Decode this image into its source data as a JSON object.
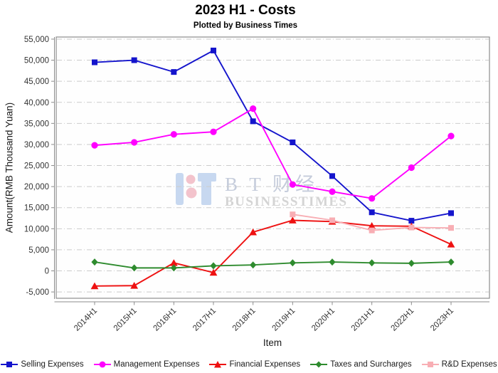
{
  "title": "2023 H1 - Costs",
  "subtitle": "Plotted by Business Times",
  "watermark": {
    "line1": "B T 财经",
    "line2": "BUSINESSTIMES",
    "logo_blue": "#C7D8F0",
    "logo_pink": "#F3C3CC",
    "text_color1": "#C5CCDB",
    "text_color2": "#D4D4D4"
  },
  "chart_data": {
    "type": "line",
    "title": "2023 H1 - Costs",
    "subtitle": "Plotted by Business Times",
    "xlabel": "Item",
    "ylabel": "Amount(RMB Thousand Yuan)",
    "categories": [
      "2014H1",
      "2015H1",
      "2016H1",
      "2017H1",
      "2018H1",
      "2019H1",
      "2020H1",
      "2021H1",
      "2022H1",
      "2023H1"
    ],
    "series": [
      {
        "name": "Selling Expenses",
        "color": "#1414CC",
        "marker": "square",
        "values": [
          49500,
          50000,
          47200,
          52300,
          35500,
          30500,
          22500,
          13900,
          11900,
          13700
        ]
      },
      {
        "name": "Management Expenses",
        "color": "#FF00FF",
        "marker": "circle",
        "values": [
          29800,
          30500,
          32400,
          33000,
          38500,
          20500,
          18800,
          17200,
          24500,
          32000
        ]
      },
      {
        "name": "Financial Expenses",
        "color": "#EE1111",
        "marker": "triangle",
        "values": [
          -3600,
          -3500,
          1900,
          -400,
          9200,
          12000,
          11700,
          10700,
          10600,
          6300
        ]
      },
      {
        "name": "Taxes and Surcharges",
        "color": "#2E8B2E",
        "marker": "diamond",
        "values": [
          2100,
          700,
          700,
          1200,
          1400,
          1900,
          2100,
          1900,
          1800,
          2100
        ]
      },
      {
        "name": "R&D Expenses",
        "color": "#F8AEB4",
        "marker": "square",
        "values": [
          null,
          null,
          null,
          null,
          null,
          13400,
          12000,
          9600,
          10300,
          10200
        ]
      }
    ],
    "ylim": [
      -6500,
      55500
    ],
    "yticks": [
      55000,
      50000,
      45000,
      40000,
      35000,
      30000,
      25000,
      20000,
      15000,
      10000,
      5000,
      0,
      -5000
    ],
    "grid": true,
    "grid_style": "dashed",
    "legend_position": "bottom"
  }
}
